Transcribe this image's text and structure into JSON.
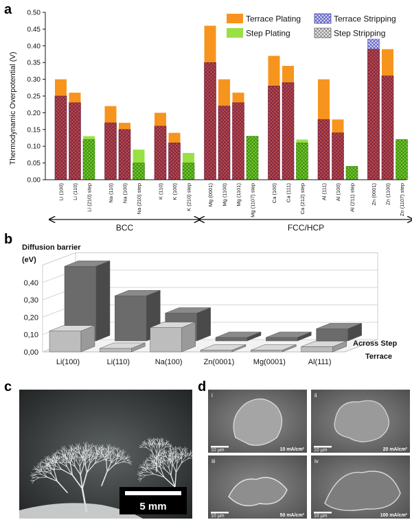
{
  "panels": {
    "a": "a",
    "b": "b",
    "c": "c",
    "d": "d"
  },
  "chart_data": [
    {
      "type": "bar",
      "panel": "a",
      "ylabel": "Thermodynamic Overpotential (V)",
      "ylim": [
        0,
        0.5
      ],
      "yticks": [
        "0.00",
        "0.05",
        "0.10",
        "0.15",
        "0.20",
        "0.25",
        "0.30",
        "0.35",
        "0.40",
        "0.45",
        "0.50"
      ],
      "legend": {
        "placement": "top-right",
        "items": [
          {
            "name": "Terrace Plating",
            "color": "#f7941d",
            "hatch": "none"
          },
          {
            "name": "Terrace Stripping",
            "color": "#7777dd",
            "hatch": "cross"
          },
          {
            "name": "Step Plating",
            "color": "#99e045",
            "hatch": "none"
          },
          {
            "name": "Step Stripping",
            "color": "#bbbbbb",
            "hatch": "cross"
          }
        ]
      },
      "categories": [
        {
          "label": "Li (100)",
          "step": false,
          "plating": 0.3,
          "stripping": 0.25
        },
        {
          "label": "Li (110)",
          "step": false,
          "plating": 0.26,
          "stripping": 0.23
        },
        {
          "label": "Li (210) step",
          "step": true,
          "plating": 0.13,
          "stripping": 0.12
        },
        {
          "label": "Na (110)",
          "step": false,
          "plating": 0.22,
          "stripping": 0.17
        },
        {
          "label": "Na (100)",
          "step": false,
          "plating": 0.17,
          "stripping": 0.15
        },
        {
          "label": "Na (210) step",
          "step": true,
          "plating": 0.09,
          "stripping": 0.05
        },
        {
          "label": "K (110)",
          "step": false,
          "plating": 0.2,
          "stripping": 0.16
        },
        {
          "label": "K (100)",
          "step": false,
          "plating": 0.14,
          "stripping": 0.11
        },
        {
          "label": "K (210) step",
          "step": true,
          "plating": 0.08,
          "stripping": 0.05
        },
        {
          "label": "Mg (0001)",
          "step": false,
          "plating": 0.46,
          "stripping": 0.35
        },
        {
          "label": "Mg (1100)",
          "step": false,
          "plating": 0.3,
          "stripping": 0.22
        },
        {
          "label": "Mg (1101)",
          "step": false,
          "plating": 0.26,
          "stripping": 0.23
        },
        {
          "label": "Mg (1107) step",
          "step": true,
          "plating": 0.13,
          "stripping": 0.13
        },
        {
          "label": "Ca (100)",
          "step": false,
          "plating": 0.37,
          "stripping": 0.28
        },
        {
          "label": "Ca (111)",
          "step": false,
          "plating": 0.34,
          "stripping": 0.29
        },
        {
          "label": "Ca (212) step",
          "step": true,
          "plating": 0.12,
          "stripping": 0.11
        },
        {
          "label": "Al (111)",
          "step": false,
          "plating": 0.3,
          "stripping": 0.18
        },
        {
          "label": "Al (100)",
          "step": false,
          "plating": 0.18,
          "stripping": 0.14
        },
        {
          "label": "Al (211) step",
          "step": true,
          "plating": 0.04,
          "stripping": 0.04
        },
        {
          "label": "Zn (0001)",
          "step": false,
          "plating": 0.39,
          "stripping": 0.42
        },
        {
          "label": "Zn (1100)",
          "step": false,
          "plating": 0.39,
          "stripping": 0.31
        },
        {
          "label": "Zn (1107) step",
          "step": true,
          "plating": 0.12,
          "stripping": 0.12
        }
      ],
      "groups_layout": [
        3,
        3,
        3,
        4,
        3,
        3,
        3
      ],
      "bracket_groups": [
        {
          "label": "BCC",
          "from": 0,
          "to": 8
        },
        {
          "label": "FCC/HCP",
          "from": 9,
          "to": 21
        }
      ]
    },
    {
      "type": "bar",
      "panel": "b",
      "title": "Diffusion barrier",
      "ylabel": "(eV)",
      "ylim": [
        0,
        0.5
      ],
      "yticks": [
        "0,00",
        "0,10",
        "0,20",
        "0,30",
        "0,40"
      ],
      "categories": [
        "Li(100)",
        "Li(110)",
        "Na(100)",
        "Zn(0001)",
        "Mg(0001)",
        "Al(111)"
      ],
      "series": [
        {
          "name": "Terrace",
          "values": [
            0.12,
            0.02,
            0.14,
            0.01,
            0.01,
            0.03
          ]
        },
        {
          "name": "Across Step",
          "values": [
            0.43,
            0.26,
            0.16,
            0.02,
            0.02,
            0.07
          ]
        }
      ]
    }
  ],
  "photo_c": {
    "scalebar_label": "5 mm"
  },
  "sem_d": {
    "tiles": [
      {
        "roman": "i",
        "scale": "10 µm",
        "current": "10 mA/cm²"
      },
      {
        "roman": "ii",
        "scale": "10 µm",
        "current": "20 mA/cm²"
      },
      {
        "roman": "iii",
        "scale": "10 µm",
        "current": "50 mA/cm²"
      },
      {
        "roman": "iv",
        "scale": "10 µm",
        "current": "100 mA/cm²"
      }
    ]
  }
}
